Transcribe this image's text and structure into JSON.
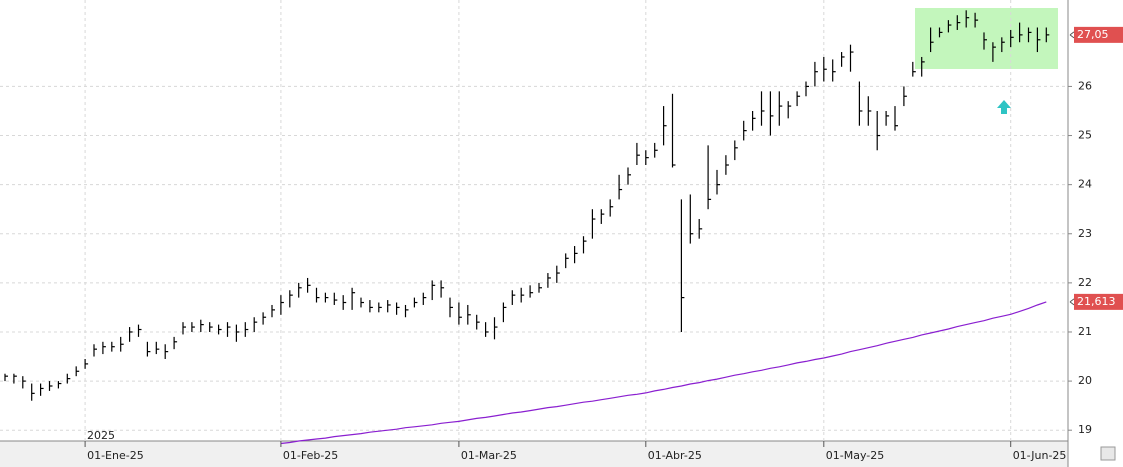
{
  "chart_data": {
    "type": "ohlc",
    "categories": [
      null,
      null,
      null,
      null,
      null,
      null,
      null,
      null,
      null,
      "01-Ene-25",
      null,
      null,
      null,
      null,
      null,
      null,
      null,
      null,
      null,
      null,
      null,
      null,
      null,
      null,
      null,
      null,
      null,
      null,
      null,
      null,
      null,
      "01-Feb-25",
      null,
      null,
      null,
      null,
      null,
      null,
      null,
      null,
      null,
      null,
      null,
      null,
      null,
      null,
      null,
      null,
      null,
      null,
      null,
      "01-Mar-25",
      null,
      null,
      null,
      null,
      null,
      null,
      null,
      null,
      null,
      null,
      null,
      null,
      null,
      null,
      null,
      null,
      null,
      null,
      null,
      null,
      "01-Abr-25",
      null,
      null,
      null,
      null,
      null,
      null,
      null,
      null,
      null,
      null,
      null,
      null,
      null,
      null,
      null,
      null,
      null,
      null,
      null,
      "01-May-25",
      null,
      null,
      null,
      null,
      null,
      null,
      null,
      null,
      null,
      null,
      null,
      null,
      null,
      null,
      null,
      null,
      null,
      null,
      null,
      null,
      "01-Jun-25",
      null,
      null,
      null,
      null
    ],
    "high": [
      20.15,
      20.15,
      20.1,
      19.95,
      19.95,
      20.0,
      20.0,
      20.15,
      20.3,
      20.45,
      20.75,
      20.8,
      20.8,
      20.9,
      21.1,
      21.15,
      20.8,
      20.8,
      20.75,
      20.9,
      21.2,
      21.2,
      21.25,
      21.2,
      21.15,
      21.2,
      21.15,
      21.2,
      21.3,
      21.4,
      21.55,
      21.75,
      21.85,
      22.0,
      22.1,
      21.9,
      21.8,
      21.8,
      21.75,
      21.9,
      21.7,
      21.65,
      21.6,
      21.65,
      21.6,
      21.55,
      21.7,
      21.8,
      22.05,
      22.05,
      21.7,
      21.6,
      21.55,
      21.35,
      21.2,
      21.3,
      21.6,
      21.85,
      21.9,
      21.95,
      22.0,
      22.2,
      22.35,
      22.6,
      22.75,
      22.95,
      23.5,
      23.5,
      23.7,
      24.2,
      24.35,
      24.85,
      24.7,
      24.85,
      25.6,
      25.85,
      23.7,
      23.8,
      23.3,
      24.8,
      24.3,
      24.6,
      24.9,
      25.3,
      25.5,
      25.9,
      25.9,
      25.9,
      25.7,
      25.9,
      26.1,
      26.5,
      26.6,
      26.55,
      26.7,
      26.85,
      26.1,
      25.8,
      25.5,
      25.5,
      25.6,
      26.0,
      26.5,
      26.6,
      27.2,
      27.2,
      27.35,
      27.45,
      27.55,
      27.5,
      27.1,
      26.9,
      27.0,
      27.15,
      27.3,
      27.2,
      27.2,
      27.2
    ],
    "low": [
      20.0,
      19.95,
      19.85,
      19.6,
      19.7,
      19.8,
      19.85,
      19.95,
      20.1,
      20.25,
      20.5,
      20.55,
      20.6,
      20.6,
      20.8,
      20.9,
      20.5,
      20.55,
      20.45,
      20.65,
      20.95,
      21.0,
      21.0,
      21.0,
      20.95,
      20.9,
      20.8,
      20.9,
      21.0,
      21.15,
      21.3,
      21.35,
      21.5,
      21.7,
      21.8,
      21.6,
      21.6,
      21.55,
      21.45,
      21.45,
      21.5,
      21.4,
      21.4,
      21.4,
      21.35,
      21.3,
      21.5,
      21.55,
      21.65,
      21.7,
      21.3,
      21.15,
      21.15,
      21.05,
      20.9,
      20.85,
      21.2,
      21.55,
      21.6,
      21.7,
      21.8,
      21.9,
      22.0,
      22.3,
      22.4,
      22.6,
      22.9,
      23.2,
      23.35,
      23.7,
      24.0,
      24.4,
      24.4,
      24.55,
      24.8,
      24.35,
      21.0,
      22.8,
      22.9,
      23.5,
      23.8,
      24.2,
      24.5,
      24.9,
      25.1,
      25.2,
      25.0,
      25.2,
      25.35,
      25.6,
      25.8,
      26.0,
      26.1,
      26.1,
      26.4,
      26.3,
      25.2,
      25.2,
      24.7,
      25.2,
      25.1,
      25.6,
      26.2,
      26.2,
      26.7,
      27.0,
      27.1,
      27.15,
      27.2,
      27.2,
      26.75,
      26.5,
      26.7,
      26.8,
      26.9,
      26.9,
      26.7,
      26.9
    ],
    "close": [
      20.1,
      20.1,
      20.0,
      19.75,
      19.85,
      19.9,
      19.95,
      20.05,
      20.2,
      20.35,
      20.65,
      20.7,
      20.7,
      20.75,
      21.0,
      21.05,
      20.6,
      20.65,
      20.6,
      20.8,
      21.1,
      21.1,
      21.15,
      21.1,
      21.05,
      21.1,
      21.0,
      21.05,
      21.2,
      21.3,
      21.45,
      21.6,
      21.75,
      21.9,
      21.95,
      21.7,
      21.7,
      21.65,
      21.6,
      21.8,
      21.6,
      21.5,
      21.5,
      21.55,
      21.5,
      21.45,
      21.6,
      21.7,
      21.95,
      21.9,
      21.5,
      21.3,
      21.35,
      21.2,
      21.0,
      21.1,
      21.5,
      21.75,
      21.75,
      21.8,
      21.9,
      22.1,
      22.2,
      22.5,
      22.6,
      22.85,
      23.3,
      23.4,
      23.55,
      23.9,
      24.2,
      24.6,
      24.55,
      24.7,
      25.2,
      24.4,
      21.7,
      23.0,
      23.1,
      23.7,
      24.0,
      24.4,
      24.75,
      25.1,
      25.35,
      25.5,
      25.4,
      25.6,
      25.6,
      25.8,
      26.0,
      26.3,
      26.35,
      26.3,
      26.6,
      26.7,
      25.5,
      25.5,
      25.0,
      25.4,
      25.2,
      25.8,
      26.3,
      26.5,
      26.9,
      27.1,
      27.25,
      27.3,
      27.4,
      27.35,
      26.95,
      26.8,
      26.9,
      27.0,
      27.05,
      27.1,
      26.95,
      27.05
    ],
    "color": "#000000",
    "line": {
      "color": "#8a1fd0",
      "values": [
        null,
        null,
        null,
        null,
        null,
        null,
        null,
        null,
        null,
        null,
        null,
        null,
        null,
        null,
        null,
        null,
        null,
        null,
        null,
        null,
        null,
        null,
        null,
        null,
        null,
        null,
        null,
        null,
        null,
        null,
        null,
        18.73,
        18.75,
        18.78,
        18.8,
        18.82,
        18.84,
        18.87,
        18.89,
        18.91,
        18.93,
        18.96,
        18.98,
        19.0,
        19.02,
        19.05,
        19.07,
        19.09,
        19.11,
        19.14,
        19.16,
        19.18,
        19.21,
        19.24,
        19.26,
        19.29,
        19.32,
        19.35,
        19.37,
        19.4,
        19.43,
        19.46,
        19.48,
        19.51,
        19.54,
        19.57,
        19.59,
        19.62,
        19.65,
        19.68,
        19.71,
        19.73,
        19.76,
        19.8,
        19.83,
        19.87,
        19.9,
        19.94,
        19.97,
        20.01,
        20.04,
        20.08,
        20.12,
        20.15,
        20.19,
        20.22,
        20.26,
        20.29,
        20.33,
        20.37,
        20.4,
        20.44,
        20.47,
        20.51,
        20.55,
        20.6,
        20.64,
        20.68,
        20.72,
        20.77,
        20.81,
        20.85,
        20.89,
        20.94,
        20.98,
        21.02,
        21.06,
        21.11,
        21.15,
        21.19,
        21.23,
        21.28,
        21.32,
        21.36,
        21.42,
        21.48,
        21.55,
        21.613
      ]
    },
    "price_tags": [
      {
        "value": 27.05,
        "label": "27,05",
        "color": "#e05050"
      },
      {
        "value": 21.613,
        "label": "21,613",
        "color": "#e05050"
      }
    ],
    "year_label": "2025",
    "ylim": [
      18.78,
      27.76
    ],
    "yticks": [
      19,
      20,
      21,
      22,
      23,
      24,
      25,
      26
    ],
    "grid": true
  }
}
